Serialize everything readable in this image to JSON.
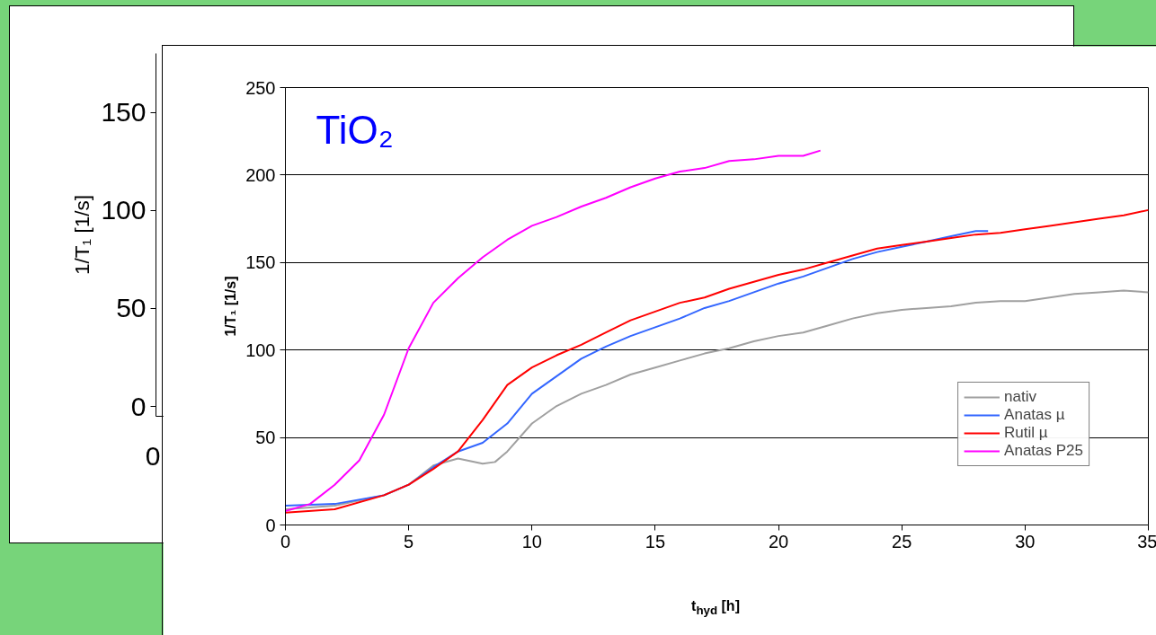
{
  "chart_data": [
    {
      "type": "line",
      "ylabel": "1/T₁ [1/s]",
      "annotations": [
        "0"
      ],
      "categories": [
        null,
        null
      ],
      "ylim": [
        -5,
        180
      ],
      "yticks": [
        0,
        50,
        100,
        150
      ],
      "tick_labels": "y",
      "series": [
        {
          "color": "#00a000",
          "values": [
            null,
            null
          ]
        }
      ]
    },
    {
      "type": "line",
      "xlabel": "t$_{hyd}$ [h]",
      "ylabel": "1/T₁ [1/s]",
      "annotations": [
        "TiO₂"
      ],
      "xlim": [
        0,
        35
      ],
      "xticks": [
        0,
        5,
        10,
        15,
        20,
        25,
        30,
        35
      ],
      "ylim": [
        0,
        250
      ],
      "yticks": [
        0,
        50,
        100,
        150,
        200,
        250
      ],
      "grid": "y",
      "legend": "bottom right",
      "series": [
        {
          "name": "nativ",
          "color": "#a0a0a0",
          "x": [
            0,
            2,
            4,
            5,
            6,
            7,
            8,
            8.5,
            9,
            10,
            11,
            12,
            13,
            14,
            15,
            16,
            17,
            18,
            19,
            20,
            21,
            22,
            23,
            24,
            25,
            26,
            27,
            28,
            29,
            30,
            31,
            32,
            33,
            34,
            35
          ],
          "values": [
            9,
            11,
            17,
            23,
            34,
            38,
            35,
            36,
            42,
            58,
            68,
            75,
            80,
            86,
            90,
            94,
            98,
            101,
            105,
            108,
            110,
            114,
            118,
            121,
            123,
            124,
            125,
            127,
            128,
            128,
            130,
            132,
            133,
            134,
            133
          ]
        },
        {
          "name": "Anatas µ",
          "color": "#3366ff",
          "x": [
            0,
            2,
            4,
            5,
            6,
            7,
            8,
            9,
            10,
            11,
            12,
            13,
            14,
            15,
            16,
            17,
            18,
            19,
            20,
            21,
            22,
            23,
            24,
            25,
            26,
            27,
            28,
            28.5
          ],
          "values": [
            11,
            12,
            17,
            23,
            33,
            42,
            47,
            58,
            75,
            85,
            95,
            102,
            108,
            113,
            118,
            124,
            128,
            133,
            138,
            142,
            147,
            152,
            156,
            159,
            162,
            165,
            168,
            168
          ]
        },
        {
          "name": "Rutil µ",
          "color": "#ff0000",
          "x": [
            0,
            2,
            4,
            5,
            6,
            7,
            8,
            9,
            10,
            11,
            12,
            13,
            14,
            15,
            16,
            17,
            18,
            19,
            20,
            21,
            22,
            23,
            24,
            25,
            26,
            27,
            28,
            29,
            30,
            31,
            32,
            33,
            34,
            35
          ],
          "values": [
            7,
            9,
            17,
            23,
            32,
            42,
            60,
            80,
            90,
            97,
            103,
            110,
            117,
            122,
            127,
            130,
            135,
            139,
            143,
            146,
            150,
            154,
            158,
            160,
            162,
            164,
            166,
            167,
            169,
            171,
            173,
            175,
            177,
            180
          ]
        },
        {
          "name": "Anatas P25",
          "color": "#ff00ff",
          "x": [
            0,
            1,
            2,
            3,
            4,
            5,
            6,
            7,
            8,
            9,
            10,
            11,
            12,
            13,
            14,
            15,
            16,
            17,
            18,
            19,
            20,
            21,
            21.7
          ],
          "values": [
            8,
            12,
            23,
            37,
            63,
            101,
            127,
            141,
            153,
            163,
            171,
            176,
            182,
            187,
            193,
            198,
            202,
            204,
            208,
            209,
            211,
            211,
            214
          ]
        }
      ]
    }
  ]
}
